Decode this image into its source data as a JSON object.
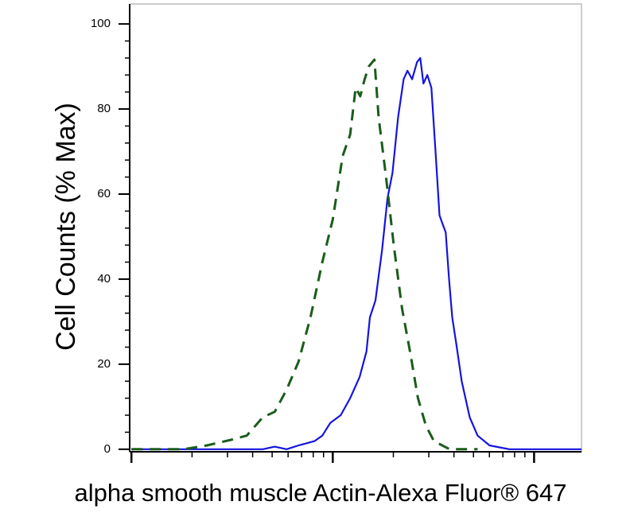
{
  "chart_data": {
    "type": "line",
    "xlabel": "alpha smooth muscle Actin-Alexa Fluor® 647",
    "ylabel": "Cell Counts (% Max)",
    "log_x": true,
    "xlim": [
      0.98,
      172
    ],
    "xticks": [
      1,
      10,
      100
    ],
    "ylim": [
      -0.6,
      104.7
    ],
    "yticks": [
      0,
      20,
      40,
      60,
      80,
      100
    ],
    "series": [
      {
        "color": "#1414e0",
        "dashed": false,
        "x": [
          1,
          2.85,
          4.49,
          5.15,
          5.9,
          6.76,
          8.11,
          8.88,
          9.73,
          10.95,
          12.2,
          13.6,
          14.7,
          15.3,
          16.3,
          17.6,
          18.7,
          19.8,
          21.1,
          22.5,
          23.5,
          24.8,
          26.2,
          27.2,
          28.2,
          29.5,
          30.9,
          32.4,
          33.9,
          35.1,
          36.4,
          37.8,
          39.2,
          41.0,
          43.7,
          47.9,
          52.4,
          60.1,
          75.4,
          172
        ],
        "values": [
          0,
          0,
          0,
          0.6,
          0,
          0.9,
          1.9,
          3.2,
          6.2,
          8,
          12,
          17,
          23,
          31,
          35,
          47,
          59,
          65,
          78,
          87,
          89,
          87,
          91,
          92,
          86,
          88,
          85,
          70,
          55,
          53,
          51,
          40,
          31,
          25,
          16,
          7.5,
          3.2,
          0.9,
          0,
          0
        ]
      },
      {
        "color": "#1a5c1a",
        "dashed": true,
        "x": [
          1,
          1.37,
          1.81,
          2.37,
          3.12,
          3.74,
          4.49,
          5.15,
          5.9,
          6.76,
          7.75,
          8.88,
          10,
          11.2,
          12.2,
          13.0,
          13.7,
          14.4,
          15.1,
          16.1,
          16.9,
          18.4,
          20.1,
          22.1,
          24.2,
          26.5,
          29.0,
          31.8,
          38.1,
          52.4
        ],
        "values": [
          0,
          0,
          0,
          0.9,
          2.2,
          3.2,
          7.5,
          8.8,
          14,
          20.6,
          31,
          44,
          54,
          69,
          74,
          85,
          83,
          87,
          90,
          91.6,
          78,
          64,
          48,
          33,
          23,
          12,
          5.6,
          1.9,
          0,
          0
        ]
      }
    ]
  }
}
